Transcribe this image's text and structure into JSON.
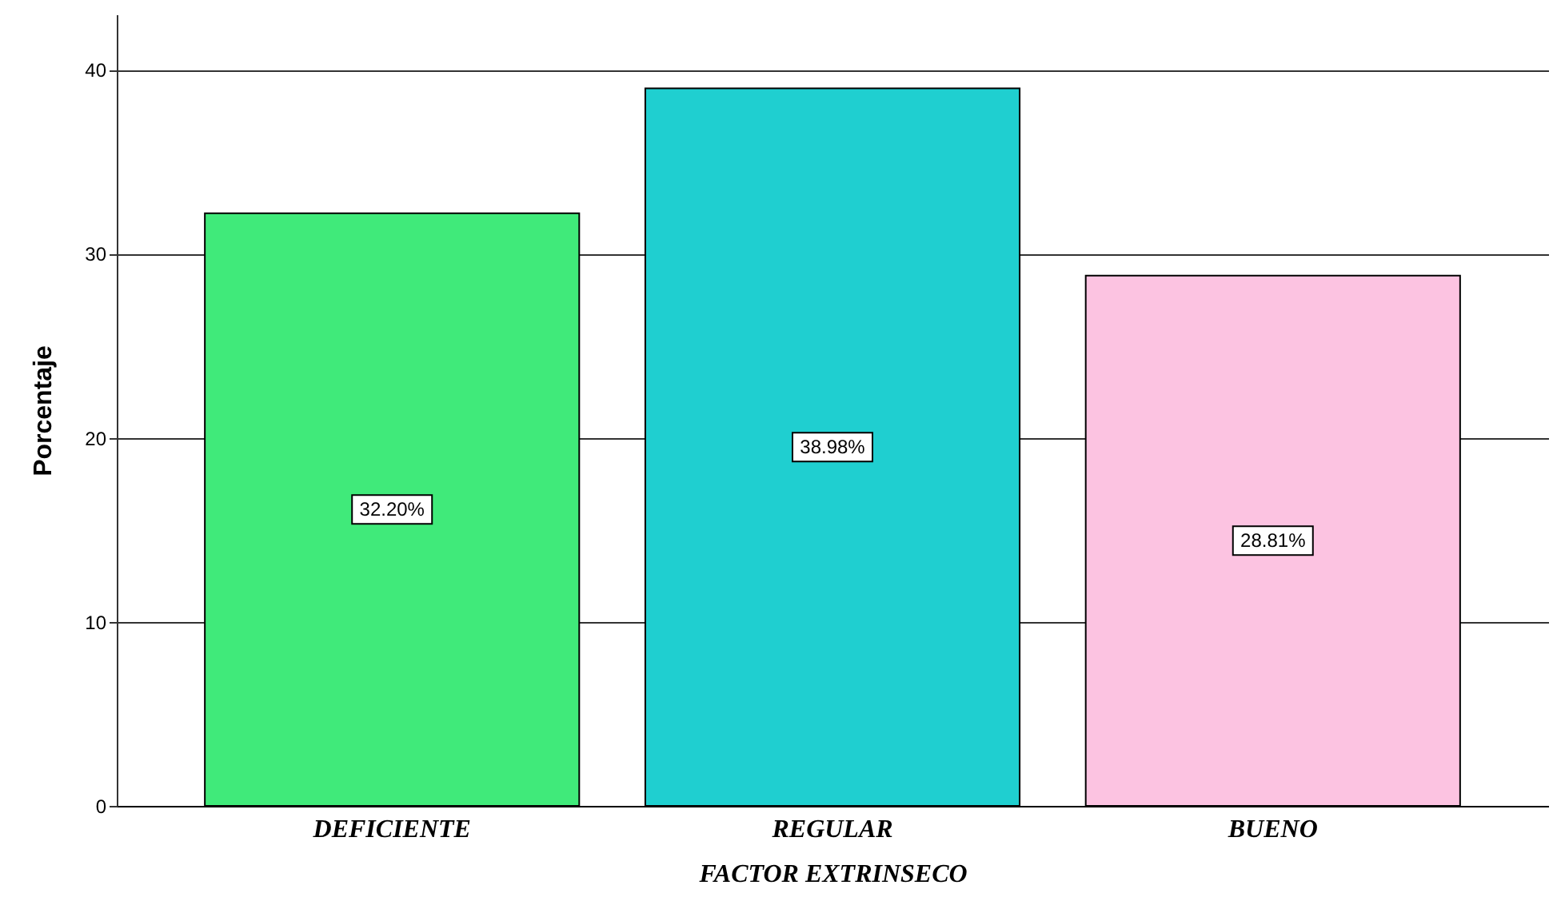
{
  "chart_data": {
    "type": "bar",
    "xlabel": "FACTOR EXTRINSECO",
    "ylabel": "Porcentaje",
    "categories": [
      "DEFICIENTE",
      "REGULAR",
      "BUENO"
    ],
    "values": [
      32.2,
      38.98,
      28.81
    ],
    "value_labels": [
      "32.20%",
      "38.98%",
      "28.81%"
    ],
    "colors": [
      "#40ea7a",
      "#1fcfd0",
      "#fcc3e1"
    ],
    "ylim": [
      0,
      43
    ],
    "yticks": [
      0,
      10,
      20,
      30,
      40
    ],
    "grid": "y"
  }
}
